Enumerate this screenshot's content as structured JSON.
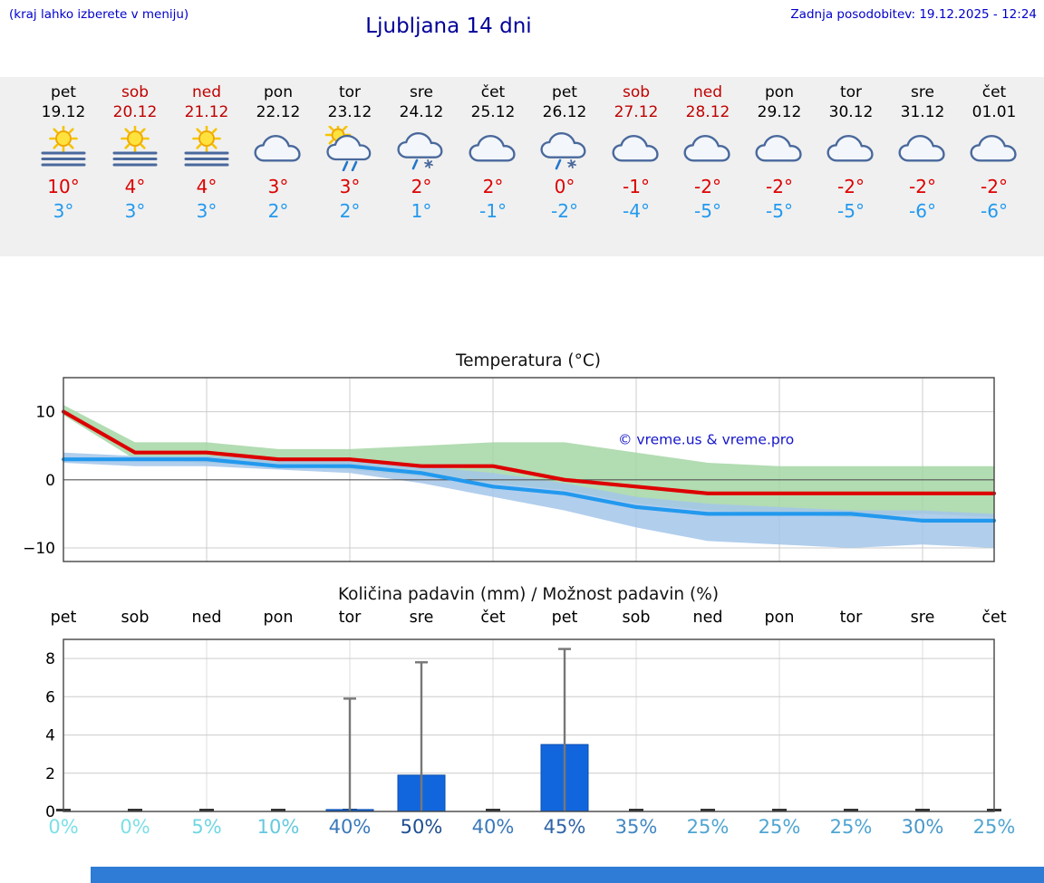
{
  "header": {
    "hint": "(kraj lahko izberete v meniju)",
    "title": "Ljubljana 14 dni",
    "updated": "Zadnja posodobitev: 19.12.2025 - 12:24"
  },
  "colors": {
    "link_blue": "#0000cc",
    "title_blue": "#000099",
    "weekend_red": "#c00000",
    "temp_max_red": "#dd0000",
    "temp_min_blue": "#2299ee",
    "strip_background": "#f0f0f0",
    "footer_blue": "#2e7cd6"
  },
  "days": [
    {
      "name": "pet",
      "date": "19.12",
      "weekend": false,
      "icon": "sun-fog",
      "tmax": "10°",
      "tmin": "3°"
    },
    {
      "name": "sob",
      "date": "20.12",
      "weekend": true,
      "icon": "sun-fog",
      "tmax": "4°",
      "tmin": "3°"
    },
    {
      "name": "ned",
      "date": "21.12",
      "weekend": true,
      "icon": "sun-fog",
      "tmax": "4°",
      "tmin": "3°"
    },
    {
      "name": "pon",
      "date": "22.12",
      "weekend": false,
      "icon": "cloud",
      "tmax": "3°",
      "tmin": "2°"
    },
    {
      "name": "tor",
      "date": "23.12",
      "weekend": false,
      "icon": "sun-rain",
      "tmax": "3°",
      "tmin": "2°"
    },
    {
      "name": "sre",
      "date": "24.12",
      "weekend": false,
      "icon": "sleet",
      "tmax": "2°",
      "tmin": "1°"
    },
    {
      "name": "čet",
      "date": "25.12",
      "weekend": false,
      "icon": "cloud",
      "tmax": "2°",
      "tmin": "-1°"
    },
    {
      "name": "pet",
      "date": "26.12",
      "weekend": false,
      "icon": "sleet",
      "tmax": "0°",
      "tmin": "-2°"
    },
    {
      "name": "sob",
      "date": "27.12",
      "weekend": true,
      "icon": "cloud",
      "tmax": "-1°",
      "tmin": "-4°"
    },
    {
      "name": "ned",
      "date": "28.12",
      "weekend": true,
      "icon": "cloud",
      "tmax": "-2°",
      "tmin": "-5°"
    },
    {
      "name": "pon",
      "date": "29.12",
      "weekend": false,
      "icon": "cloud",
      "tmax": "-2°",
      "tmin": "-5°"
    },
    {
      "name": "tor",
      "date": "30.12",
      "weekend": false,
      "icon": "cloud",
      "tmax": "-2°",
      "tmin": "-5°"
    },
    {
      "name": "sre",
      "date": "31.12",
      "weekend": false,
      "icon": "cloud",
      "tmax": "-2°",
      "tmin": "-6°"
    },
    {
      "name": "čet",
      "date": "01.01",
      "weekend": false,
      "icon": "cloud",
      "tmax": "-2°",
      "tmin": "-6°"
    }
  ],
  "chart_data": [
    {
      "type": "line",
      "title": "Temperatura (°C)",
      "x": [
        "19.12",
        "20.12",
        "21.12",
        "22.12",
        "23.12",
        "24.12",
        "25.12",
        "26.12",
        "27.12",
        "28.12",
        "29.12",
        "30.12",
        "31.12",
        "01.01"
      ],
      "series": [
        {
          "name": "max-temperature",
          "color": "#dd0000",
          "values": [
            10,
            4,
            4,
            3,
            3,
            2,
            2,
            0,
            -1,
            -2,
            -2,
            -2,
            -2,
            -2
          ]
        },
        {
          "name": "min-temperature",
          "color": "#2299ee",
          "values": [
            3,
            3,
            3,
            2,
            2,
            1,
            -1,
            -2,
            -4,
            -5,
            -5,
            -5,
            -6,
            -6
          ]
        }
      ],
      "bands": [
        {
          "name": "max-temp-range",
          "color": "#a5d6a5",
          "upper": [
            11,
            5.5,
            5.5,
            4.5,
            4.5,
            5,
            5.5,
            5.5,
            4,
            2.5,
            2,
            2,
            2,
            2
          ],
          "lower": [
            9.5,
            3,
            2.5,
            2,
            1.5,
            0.5,
            -0.5,
            -1.5,
            -3.5,
            -4.5,
            -5,
            -5.5,
            -5,
            -5.5
          ]
        },
        {
          "name": "min-temp-range",
          "color": "#a3c6ea",
          "upper": [
            4,
            3.5,
            3.5,
            3,
            3,
            2,
            1,
            -0.5,
            -2.5,
            -3.5,
            -4,
            -4.5,
            -4.5,
            -5
          ],
          "lower": [
            2.5,
            2,
            2,
            1.5,
            1,
            -0.5,
            -2.5,
            -4.5,
            -7,
            -9,
            -9.5,
            -10,
            -9.5,
            -10
          ]
        }
      ],
      "ylim": [
        -12,
        15
      ],
      "yticks": [
        10,
        0,
        -10
      ],
      "grid": true,
      "legend": "none",
      "watermark": "© vreme.us & vreme.pro",
      "watermark_color": "#1414cc"
    },
    {
      "type": "bar",
      "title": "Količina padavin (mm) / Možnost padavin (%)",
      "categories": [
        "pet",
        "sob",
        "ned",
        "pon",
        "tor",
        "sre",
        "čet",
        "pet",
        "sob",
        "ned",
        "pon",
        "tor",
        "sre",
        "čet"
      ],
      "values": [
        0,
        0,
        0,
        0,
        0.1,
        1.9,
        0,
        3.5,
        0,
        0,
        0,
        0,
        0,
        0
      ],
      "whisker_max": [
        0,
        0,
        0,
        0,
        5.9,
        7.8,
        0,
        8.5,
        0,
        0,
        0,
        0,
        0,
        0
      ],
      "probability_pct": [
        0,
        0,
        5,
        10,
        40,
        50,
        40,
        45,
        35,
        25,
        25,
        25,
        30,
        25
      ],
      "prob_colors": [
        "#7ce0e6",
        "#7ce0e6",
        "#70d6e2",
        "#64c9de",
        "#3a78ba",
        "#1d4e91",
        "#3a78ba",
        "#2f64a8",
        "#4187c2",
        "#4fa5d2",
        "#4fa5d2",
        "#4fa5d2",
        "#4897ca",
        "#4fa5d2"
      ],
      "bar_color": "#1266dd",
      "bar_border": "#0a4fb0",
      "whisker_color": "#777777",
      "ylim": [
        0,
        9
      ],
      "yticks": [
        0,
        2,
        4,
        6,
        8
      ],
      "grid": true,
      "legend": "none"
    }
  ]
}
